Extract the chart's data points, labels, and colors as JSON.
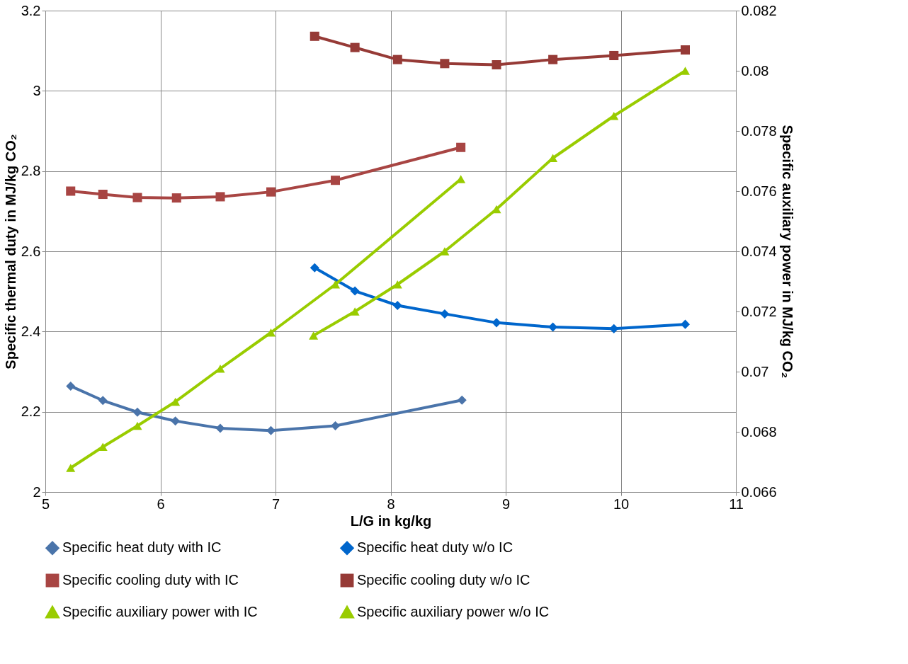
{
  "chart_data": {
    "type": "line",
    "xlabel": "L/G in kg/kg",
    "ylabel": "Specific thermal duty in MJ/kg CO₂",
    "y2label": "Specific auxiliary power in MJ/kg CO₂",
    "xlim": [
      5,
      11
    ],
    "xticks": [
      5,
      6,
      7,
      8,
      9,
      10,
      11
    ],
    "ylim": [
      2,
      3.2
    ],
    "yticks": [
      2,
      2.2,
      2.4,
      2.6,
      2.8,
      3,
      3.2
    ],
    "y2lim": [
      0.066,
      0.082
    ],
    "y2ticks": [
      0.066,
      0.068,
      0.07,
      0.072,
      0.074,
      0.076,
      0.078,
      0.08,
      0.082
    ],
    "grid": true,
    "legend": "bottom",
    "line_style": "solid",
    "series": [
      {
        "name": "Specific heat duty with IC",
        "color": "#4a74aa",
        "marker": "diamond",
        "x": [
          5.22,
          5.5,
          5.8,
          6.13,
          6.52,
          6.96,
          7.52,
          8.62
        ],
        "values": [
          2.264,
          2.228,
          2.199,
          2.177,
          2.159,
          2.153,
          2.165,
          2.229
        ]
      },
      {
        "name": "Specific heat duty w/o IC",
        "color": "#0066cc",
        "marker": "diamond",
        "x": [
          7.34,
          7.69,
          8.06,
          8.47,
          8.92,
          9.41,
          9.94,
          10.56
        ],
        "values": [
          2.559,
          2.501,
          2.465,
          2.444,
          2.422,
          2.411,
          2.407,
          2.418
        ]
      },
      {
        "name": "Specific cooling duty with IC",
        "color": "#a84543",
        "marker": "square",
        "x": [
          5.22,
          5.5,
          5.8,
          6.14,
          6.52,
          6.96,
          7.52,
          8.61
        ],
        "values": [
          2.75,
          2.742,
          2.734,
          2.733,
          2.736,
          2.748,
          2.777,
          2.859
        ]
      },
      {
        "name": "Specific cooling duty w/o IC",
        "color": "#963a36",
        "marker": "square",
        "x": [
          7.34,
          7.69,
          8.06,
          8.47,
          8.92,
          9.41,
          9.94,
          10.56
        ],
        "values": [
          3.136,
          3.108,
          3.078,
          3.068,
          3.065,
          3.078,
          3.088,
          3.102
        ]
      },
      {
        "name": "Specific auxiliary power with IC",
        "color": "#99cc00",
        "marker": "triangle",
        "axis": "y2",
        "x": [
          5.22,
          5.5,
          5.8,
          6.13,
          6.52,
          6.96,
          7.52,
          8.61
        ],
        "values": [
          0.0668,
          0.0675,
          0.0682,
          0.069,
          0.0701,
          0.0713,
          0.0729,
          0.0764
        ]
      },
      {
        "name": "Specific auxiliary power w/o IC",
        "color": "#99cc00",
        "marker": "triangle",
        "axis": "y2",
        "x": [
          7.33,
          7.69,
          8.06,
          8.47,
          8.92,
          9.41,
          9.94,
          10.56
        ],
        "values": [
          0.0712,
          0.072,
          0.0729,
          0.074,
          0.0754,
          0.0771,
          0.0785,
          0.08
        ]
      }
    ]
  }
}
